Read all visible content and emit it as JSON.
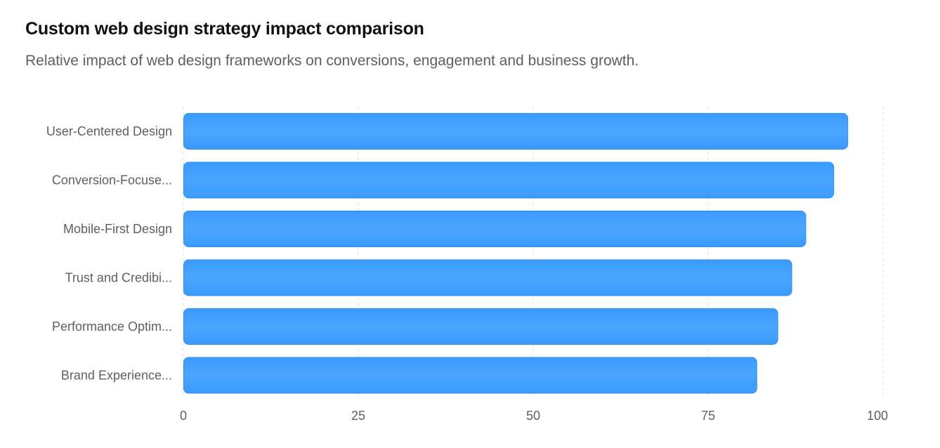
{
  "header": {
    "title": "Custom web design strategy impact comparison",
    "subtitle": "Relative impact of web design frameworks on conversions, engagement and business growth."
  },
  "colors": {
    "bar_fill": "#3d9dff",
    "bar_stroke": "#2f8eef",
    "grid": "#dcdcdc",
    "label": "#5f5f5f"
  },
  "chart_data": {
    "type": "bar",
    "orientation": "horizontal",
    "title": "Custom web design strategy impact comparison",
    "subtitle": "Relative impact of web design frameworks on conversions, engagement and business growth.",
    "categories": [
      "User-Centered Design",
      "Conversion-Focuse...",
      "Mobile-First Design",
      "Trust and Credibi...",
      "Performance Optim...",
      "Brand Experience..."
    ],
    "values": [
      95,
      93,
      89,
      87,
      85,
      82
    ],
    "xlim": [
      0,
      100
    ],
    "xticks": [
      0,
      25,
      50,
      75,
      100
    ],
    "xlabel": "",
    "ylabel": "",
    "grid": true
  }
}
